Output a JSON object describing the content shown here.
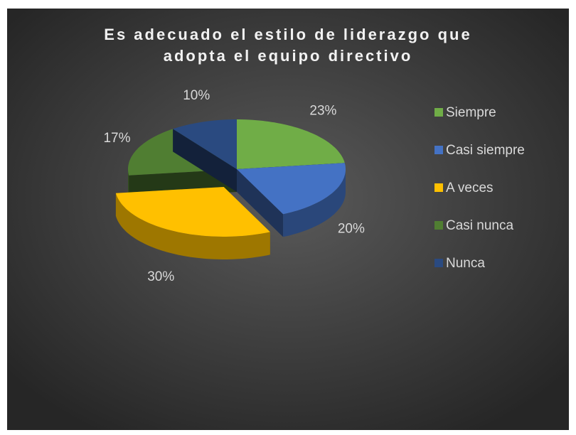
{
  "chart_data": {
    "type": "pie",
    "title": "Es adecuado el estilo de liderazgo que adopta el equipo directivo",
    "categories": [
      "Siempre",
      "Casi siempre",
      "A veces",
      "Casi nunca",
      "Nunca"
    ],
    "values": [
      23,
      20,
      30,
      17,
      10
    ],
    "value_labels": [
      "23%",
      "20%",
      "30%",
      "17%",
      "10%"
    ],
    "colors": [
      "#70ad47",
      "#4472c4",
      "#ffc000",
      "#507e32",
      "#2a4a80"
    ],
    "exploded": "A veces",
    "legend": "right"
  }
}
